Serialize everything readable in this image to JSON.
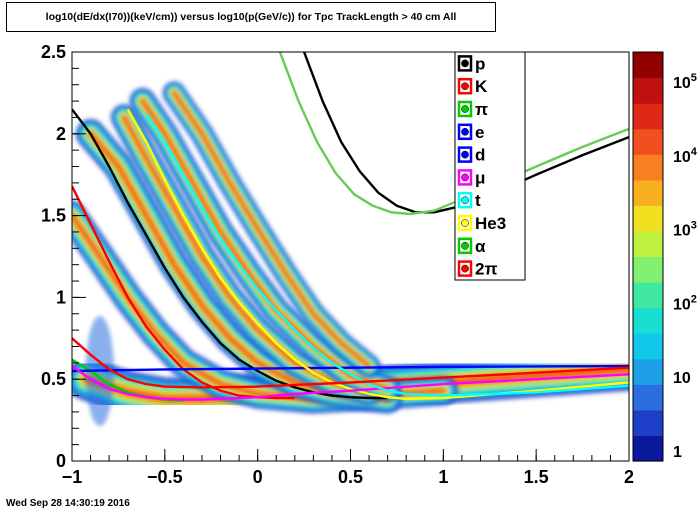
{
  "title": "log10(dE/dx(I70))(keV/cm)) versus log10(p(GeV/c)) for Tpc TrackLength > 40 cm All",
  "timestamp": "Wed Sep 28 14:30:19 2016",
  "colors": {
    "p": "#000000",
    "K": "#ff0000",
    "pi": "#00cc00",
    "e": "#0000ff",
    "d": "#0000ff",
    "mu": "#ff00ff",
    "t": "#00ffff",
    "He3": "#ffff00",
    "alpha": "#00cc00",
    "pi2": "#ff0000",
    "palette": [
      "#0b1a9c",
      "#1e40c8",
      "#2a6ee0",
      "#1ea0e8",
      "#10c8e8",
      "#18e0d0",
      "#40e8a0",
      "#80f070",
      "#c0f040",
      "#f0e020",
      "#f8b020",
      "#f88020",
      "#f05020",
      "#e02818",
      "#c01010",
      "#900000"
    ]
  },
  "chart_data": {
    "type": "heatmap",
    "title": "log10(dE/dx(I70))(keV/cm)) versus log10(p(GeV/c)) for Tpc TrackLength > 40 cm All",
    "xlim": [
      -1,
      2
    ],
    "ylim": [
      0,
      2.5
    ],
    "x_ticks": [
      "−1",
      "−0.5",
      "0",
      "0.5",
      "1",
      "1.5",
      "2"
    ],
    "x_tick_values": [
      -1,
      -0.5,
      0,
      0.5,
      1,
      1.5,
      2
    ],
    "y_ticks": [
      "0",
      "0.5",
      "1",
      "1.5",
      "2",
      "2.5"
    ],
    "y_tick_values": [
      0,
      0.5,
      1,
      1.5,
      2,
      2.5
    ],
    "colorbar_labels": [
      "1",
      "10",
      "10",
      "10",
      "10",
      "10"
    ],
    "colorbar_exponents": [
      "",
      "",
      "2",
      "3",
      "4",
      "5"
    ],
    "legend": [
      {
        "label": "p",
        "key": "p"
      },
      {
        "label": "K",
        "key": "K"
      },
      {
        "label": "π",
        "key": "pi"
      },
      {
        "label": "e",
        "key": "e"
      },
      {
        "label": "d",
        "key": "d"
      },
      {
        "label": "μ",
        "key": "mu"
      },
      {
        "label": "t",
        "key": "t"
      },
      {
        "label": "He3",
        "key": "He3"
      },
      {
        "label": "α",
        "key": "alpha"
      },
      {
        "label": "2π",
        "key": "pi2"
      }
    ],
    "bands": [
      {
        "key": "mip",
        "points": [
          [
            -0.92,
            0.5
          ],
          [
            -0.7,
            0.42
          ],
          [
            -0.5,
            0.38
          ],
          [
            -0.3,
            0.38
          ],
          [
            0,
            0.4
          ],
          [
            0.3,
            0.43
          ],
          [
            0.6,
            0.45
          ],
          [
            1,
            0.48
          ],
          [
            1.5,
            0.52
          ],
          [
            2,
            0.56
          ]
        ],
        "width": 0.13
      },
      {
        "key": "K",
        "points": [
          [
            -1,
            1.5
          ],
          [
            -0.85,
            1.25
          ],
          [
            -0.7,
            1.0
          ],
          [
            -0.55,
            0.78
          ],
          [
            -0.4,
            0.6
          ],
          [
            -0.2,
            0.47
          ],
          [
            0,
            0.41
          ],
          [
            0.3,
            0.38
          ],
          [
            0.6,
            0.4
          ],
          [
            1,
            0.43
          ]
        ],
        "width": 0.09
      },
      {
        "key": "p",
        "points": [
          [
            -0.9,
            2.0
          ],
          [
            -0.75,
            1.8
          ],
          [
            -0.6,
            1.5
          ],
          [
            -0.45,
            1.2
          ],
          [
            -0.3,
            0.95
          ],
          [
            -0.15,
            0.75
          ],
          [
            0,
            0.6
          ],
          [
            0.2,
            0.48
          ],
          [
            0.4,
            0.42
          ],
          [
            0.7,
            0.38
          ]
        ],
        "width": 0.09
      },
      {
        "key": "d",
        "points": [
          [
            -0.72,
            2.1
          ],
          [
            -0.6,
            1.85
          ],
          [
            -0.45,
            1.55
          ],
          [
            -0.3,
            1.25
          ],
          [
            -0.15,
            1.0
          ],
          [
            0,
            0.8
          ],
          [
            0.2,
            0.6
          ],
          [
            0.4,
            0.48
          ],
          [
            0.6,
            0.42
          ]
        ],
        "width": 0.08
      },
      {
        "key": "t",
        "points": [
          [
            -0.62,
            2.2
          ],
          [
            -0.5,
            2.0
          ],
          [
            -0.35,
            1.7
          ],
          [
            -0.2,
            1.4
          ],
          [
            -0.05,
            1.15
          ],
          [
            0.1,
            0.92
          ],
          [
            0.3,
            0.7
          ],
          [
            0.5,
            0.52
          ],
          [
            0.7,
            0.44
          ]
        ],
        "width": 0.08
      },
      {
        "key": "He3",
        "points": [
          [
            -0.45,
            2.25
          ],
          [
            -0.3,
            2.0
          ],
          [
            -0.15,
            1.7
          ],
          [
            0,
            1.42
          ],
          [
            0.15,
            1.15
          ],
          [
            0.3,
            0.9
          ],
          [
            0.45,
            0.72
          ],
          [
            0.6,
            0.58
          ]
        ],
        "width": 0.07
      }
    ],
    "curves": [
      {
        "key": "p",
        "color": "#000000",
        "points": [
          [
            -1,
            2.15
          ],
          [
            -0.9,
            2.0
          ],
          [
            -0.8,
            1.8
          ],
          [
            -0.7,
            1.58
          ],
          [
            -0.6,
            1.38
          ],
          [
            -0.5,
            1.18
          ],
          [
            -0.4,
            1.0
          ],
          [
            -0.3,
            0.85
          ],
          [
            -0.2,
            0.72
          ],
          [
            -0.1,
            0.62
          ],
          [
            0,
            0.55
          ],
          [
            0.1,
            0.49
          ],
          [
            0.2,
            0.45
          ],
          [
            0.3,
            0.42
          ],
          [
            0.4,
            0.4
          ],
          [
            0.5,
            0.39
          ],
          [
            0.6,
            0.385
          ],
          [
            0.7,
            0.385
          ]
        ]
      },
      {
        "key": "K",
        "color": "#ff0000",
        "points": [
          [
            -1,
            1.68
          ],
          [
            -0.9,
            1.45
          ],
          [
            -0.8,
            1.22
          ],
          [
            -0.7,
            1.0
          ],
          [
            -0.6,
            0.82
          ],
          [
            -0.5,
            0.68
          ],
          [
            -0.4,
            0.56
          ],
          [
            -0.3,
            0.48
          ],
          [
            -0.2,
            0.43
          ],
          [
            -0.1,
            0.4
          ],
          [
            0,
            0.39
          ],
          [
            0.1,
            0.385
          ],
          [
            0.2,
            0.385
          ]
        ]
      },
      {
        "key": "pi",
        "color": "#00cc00",
        "points": [
          [
            -1,
            0.62
          ],
          [
            -0.9,
            0.55
          ],
          [
            -0.8,
            0.47
          ],
          [
            -0.7,
            0.42
          ],
          [
            -0.6,
            0.39
          ],
          [
            -0.5,
            0.375
          ],
          [
            -0.4,
            0.37
          ]
        ]
      },
      {
        "key": "e",
        "color": "#0000ff",
        "points": [
          [
            -1,
            0.55
          ],
          [
            -0.5,
            0.56
          ],
          [
            0,
            0.565
          ],
          [
            0.5,
            0.57
          ],
          [
            1,
            0.575
          ],
          [
            1.5,
            0.578
          ],
          [
            2,
            0.58
          ]
        ]
      },
      {
        "key": "d",
        "color": "#ffff00",
        "points": [
          [
            -0.7,
            2.15
          ],
          [
            -0.6,
            1.95
          ],
          [
            -0.5,
            1.72
          ],
          [
            -0.4,
            1.5
          ],
          [
            -0.3,
            1.3
          ],
          [
            -0.2,
            1.12
          ],
          [
            -0.1,
            0.97
          ],
          [
            0,
            0.84
          ],
          [
            0.1,
            0.72
          ],
          [
            0.2,
            0.62
          ],
          [
            0.3,
            0.54
          ],
          [
            0.4,
            0.48
          ],
          [
            0.5,
            0.44
          ],
          [
            0.6,
            0.41
          ],
          [
            0.7,
            0.39
          ],
          [
            0.8,
            0.38
          ],
          [
            1,
            0.385
          ],
          [
            1.5,
            0.43
          ],
          [
            2,
            0.48
          ]
        ]
      },
      {
        "key": "mu",
        "color": "#ff00ff",
        "points": [
          [
            -1,
            0.58
          ],
          [
            -0.9,
            0.5
          ],
          [
            -0.8,
            0.44
          ],
          [
            -0.7,
            0.41
          ],
          [
            -0.6,
            0.39
          ],
          [
            -0.5,
            0.38
          ],
          [
            -0.4,
            0.375
          ],
          [
            -0.3,
            0.375
          ],
          [
            -0.2,
            0.38
          ],
          [
            0,
            0.39
          ],
          [
            0.2,
            0.41
          ],
          [
            0.5,
            0.43
          ],
          [
            1,
            0.47
          ],
          [
            1.5,
            0.5
          ],
          [
            2,
            0.53
          ]
        ]
      },
      {
        "key": "t",
        "color": "#00ffff",
        "points": [
          [
            -0.6,
            2.12
          ],
          [
            -0.5,
            1.95
          ],
          [
            -0.4,
            1.75
          ],
          [
            -0.3,
            1.55
          ],
          [
            -0.2,
            1.36
          ],
          [
            -0.1,
            1.2
          ],
          [
            0,
            1.05
          ],
          [
            0.1,
            0.92
          ],
          [
            0.2,
            0.8
          ],
          [
            0.3,
            0.69
          ],
          [
            0.4,
            0.6
          ],
          [
            0.5,
            0.53
          ],
          [
            0.6,
            0.47
          ],
          [
            0.7,
            0.43
          ],
          [
            0.8,
            0.41
          ],
          [
            1,
            0.4
          ],
          [
            1.5,
            0.42
          ],
          [
            2,
            0.46
          ]
        ]
      },
      {
        "key": "pi2",
        "color": "#ff0000",
        "points": [
          [
            -1,
            0.75
          ],
          [
            -0.9,
            0.65
          ],
          [
            -0.8,
            0.56
          ],
          [
            -0.7,
            0.5
          ],
          [
            -0.6,
            0.47
          ],
          [
            -0.5,
            0.455
          ],
          [
            -0.3,
            0.45
          ],
          [
            0,
            0.455
          ],
          [
            0.5,
            0.48
          ],
          [
            1,
            0.51
          ],
          [
            1.5,
            0.54
          ],
          [
            2,
            0.57
          ]
        ]
      },
      {
        "key": "p-high",
        "color": "#000000",
        "points": [
          [
            0.25,
            2.5
          ],
          [
            0.35,
            2.2
          ],
          [
            0.45,
            1.95
          ],
          [
            0.55,
            1.77
          ],
          [
            0.65,
            1.64
          ],
          [
            0.75,
            1.56
          ],
          [
            0.85,
            1.52
          ],
          [
            0.95,
            1.52
          ],
          [
            1.1,
            1.56
          ],
          [
            1.3,
            1.65
          ],
          [
            1.5,
            1.75
          ],
          [
            1.75,
            1.87
          ],
          [
            2,
            1.98
          ]
        ]
      },
      {
        "key": "alpha",
        "color": "#66cc55",
        "points": [
          [
            0.12,
            2.5
          ],
          [
            0.22,
            2.2
          ],
          [
            0.32,
            1.95
          ],
          [
            0.42,
            1.76
          ],
          [
            0.52,
            1.63
          ],
          [
            0.62,
            1.56
          ],
          [
            0.72,
            1.52
          ],
          [
            0.82,
            1.51
          ],
          [
            0.95,
            1.53
          ],
          [
            1.1,
            1.6
          ],
          [
            1.3,
            1.7
          ],
          [
            1.5,
            1.8
          ],
          [
            1.75,
            1.92
          ],
          [
            2,
            2.03
          ]
        ]
      }
    ]
  }
}
